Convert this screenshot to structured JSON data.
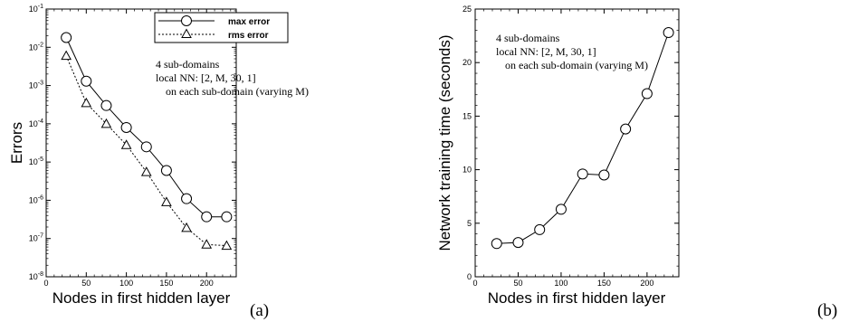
{
  "chart_data": [
    {
      "type": "line",
      "panel_label": "(a)",
      "xlabel": "Nodes in first hidden layer",
      "ylabel": "Errors",
      "x": [
        25,
        50,
        75,
        100,
        125,
        150,
        175,
        200,
        225
      ],
      "xlim": [
        0,
        237
      ],
      "xticks": [
        0,
        50,
        100,
        150,
        200
      ],
      "yscale": "log",
      "ylim": [
        1e-08,
        0.1
      ],
      "ytick_labels": [
        "10-8",
        "10-7",
        "10-6",
        "10-5",
        "10-4",
        "10-3",
        "10-2",
        "10-1"
      ],
      "yticks": [
        1e-08,
        1e-07,
        1e-06,
        1e-05,
        0.0001,
        0.001,
        0.01,
        0.1
      ],
      "annotation": [
        "4 sub-domains",
        "local NN: [2, M, 30, 1]",
        "on each sub-domain (varying M)"
      ],
      "legend_position": "top-center",
      "series": [
        {
          "name": "max error",
          "marker": "circle",
          "line": "solid",
          "values": [
            0.018,
            0.0013,
            0.0003,
            8e-05,
            2.5e-05,
            6e-06,
            1.1e-06,
            3.7e-07,
            3.7e-07
          ]
        },
        {
          "name": "rms error",
          "marker": "triangle",
          "line": "dotted",
          "values": [
            0.006,
            0.00035,
            0.0001,
            2.8e-05,
            5.5e-06,
            9e-07,
            1.9e-07,
            7e-08,
            6.5e-08
          ]
        }
      ]
    },
    {
      "type": "line",
      "panel_label": "(b)",
      "xlabel": "Nodes in first hidden layer",
      "ylabel": "Network training time (seconds)",
      "x": [
        25,
        50,
        75,
        100,
        125,
        150,
        175,
        200,
        225
      ],
      "xlim": [
        0,
        237
      ],
      "xticks": [
        0,
        50,
        100,
        150,
        200
      ],
      "yscale": "linear",
      "ylim": [
        0,
        25
      ],
      "yticks": [
        0,
        5,
        10,
        15,
        20,
        25
      ],
      "annotation": [
        "4 sub-domains",
        "local NN: [2, M, 30, 1]",
        "on each sub-domain (varying M)"
      ],
      "series": [
        {
          "marker": "circle",
          "line": "solid",
          "values": [
            3.1,
            3.2,
            4.4,
            6.3,
            9.6,
            9.5,
            13.8,
            17.1,
            22.8
          ]
        }
      ]
    }
  ]
}
